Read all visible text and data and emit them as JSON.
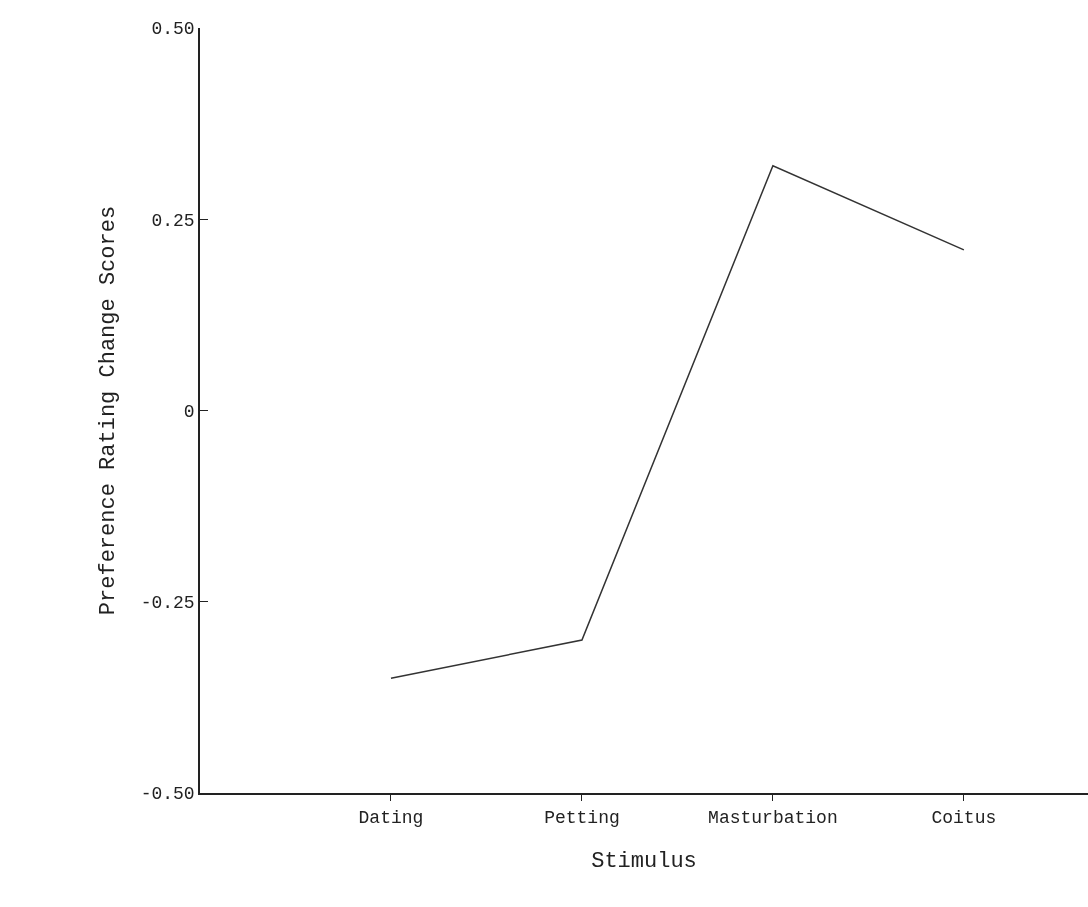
{
  "chart_data": {
    "type": "line",
    "xlabel": "Stimulus",
    "ylabel": "Preference Rating Change Scores",
    "categories": [
      "Dating",
      "Petting",
      "Masturbation",
      "Coitus"
    ],
    "series": [
      {
        "color": "#333333",
        "values": [
          -0.35,
          -0.3,
          0.32,
          0.21
        ]
      }
    ],
    "ylim": [
      -0.5,
      0.5
    ],
    "yticks": [
      {
        "value": -0.5,
        "label": "-0.50"
      },
      {
        "value": -0.25,
        "label": "-0.25"
      },
      0,
      {
        "value": 0.25,
        "label": "0.25"
      },
      {
        "value": 0.5,
        "label": "0.50"
      }
    ],
    "marker": "none",
    "line_style": "solid"
  }
}
